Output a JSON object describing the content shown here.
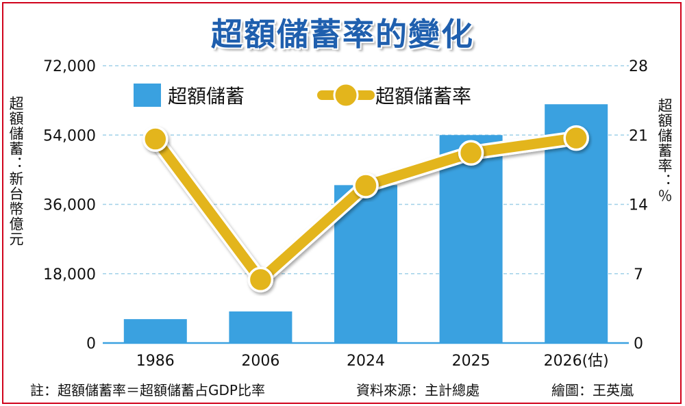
{
  "title": "超額儲蓄率的變化",
  "chart_data": {
    "type": "bar",
    "categories": [
      "1986",
      "2006",
      "2024",
      "2025",
      "2026(估)"
    ],
    "series": [
      {
        "name": "超額儲蓄",
        "type": "bar",
        "axis": "left",
        "values": [
          6200,
          8200,
          41000,
          54000,
          62000
        ]
      },
      {
        "name": "超額儲蓄率",
        "type": "line",
        "axis": "right",
        "values": [
          20.6,
          6.4,
          15.9,
          19.2,
          20.7
        ]
      }
    ],
    "y_left": {
      "label": "超額儲蓄：新台幣億元",
      "ticks": [
        "0",
        "18,000",
        "36,000",
        "54,000",
        "72,000"
      ],
      "ylim": [
        0,
        72000
      ]
    },
    "y_right": {
      "label": "超額儲蓄率：％",
      "ticks": [
        "0",
        "7",
        "14",
        "21",
        "28"
      ],
      "ylim": [
        0,
        28
      ]
    },
    "grid": "horizontal-dashed",
    "legend": "top-left",
    "colors": {
      "bar": "#3aa1e0",
      "line": "#e3b51c",
      "grid": "#9fd0e8",
      "title": "#1f5fae",
      "frame": "#d0021b"
    }
  },
  "footer": {
    "note": "註：超額儲蓄率＝超額儲蓄占GDP比率",
    "source": "資料來源：主計總處",
    "credit": "繪圖：王英嵐"
  }
}
